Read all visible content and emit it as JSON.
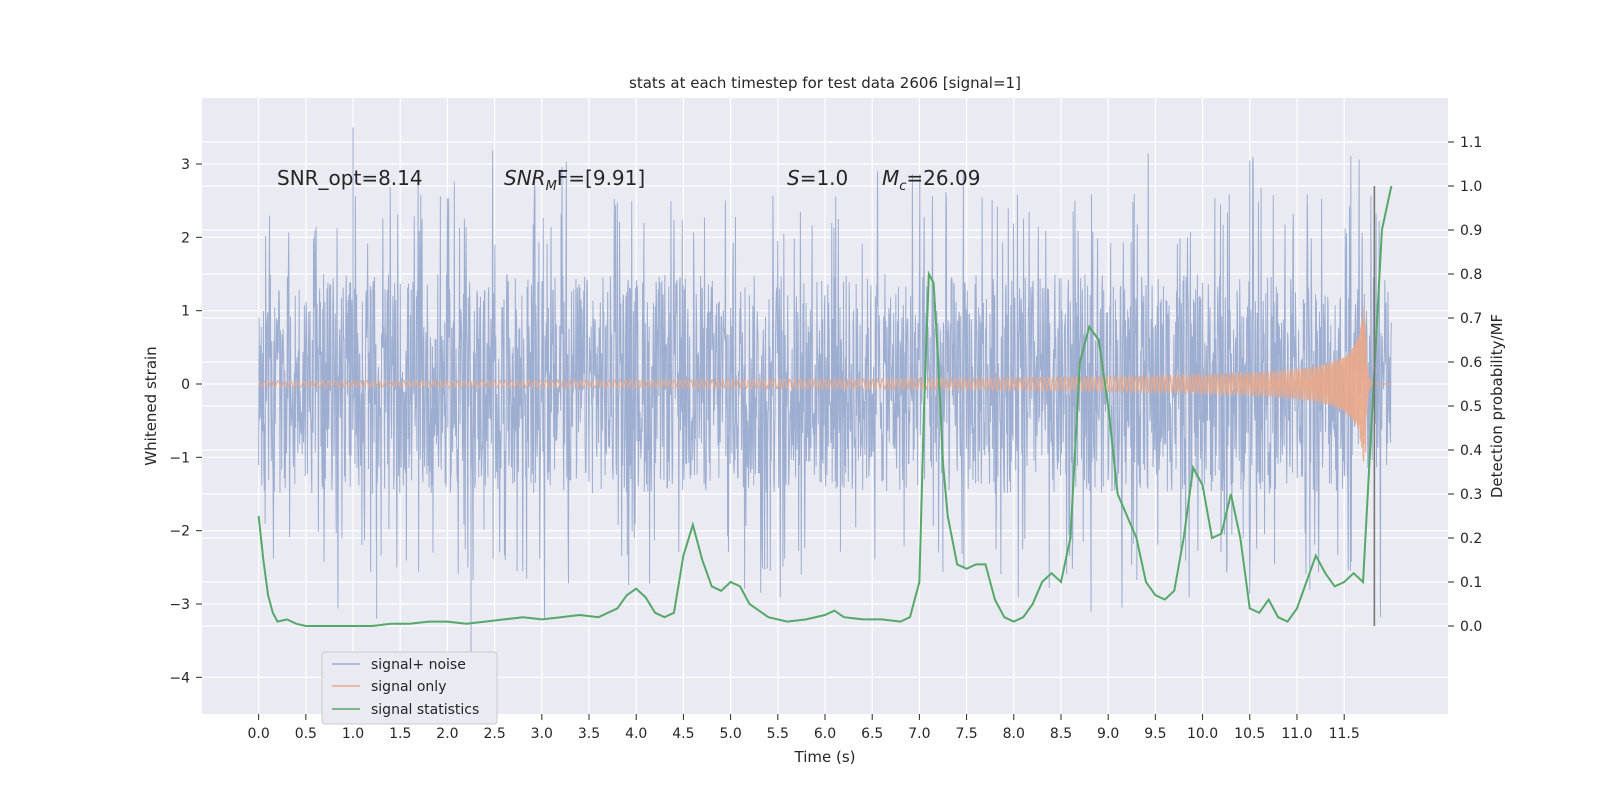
{
  "chart_data": {
    "type": "line",
    "title": "stats at each timestep for test data 2606 [signal=1]",
    "xlabel": "Time (s)",
    "ylabel_left": "Whitened strain",
    "ylabel_right": "Detection probability/MF",
    "xlim": [
      -0.6,
      12.6
    ],
    "ylim_left": [
      -4.5,
      3.9
    ],
    "ylim_right": [
      -0.2,
      1.2
    ],
    "x_ticks": [
      "0.0",
      "0.5",
      "1.0",
      "1.5",
      "2.0",
      "2.5",
      "3.0",
      "3.5",
      "4.0",
      "4.5",
      "5.0",
      "5.5",
      "6.0",
      "6.5",
      "7.0",
      "7.5",
      "8.0",
      "8.5",
      "9.0",
      "9.5",
      "10.0",
      "10.5",
      "11.0",
      "11.5"
    ],
    "y_ticks_left": [
      "3",
      "2",
      "1",
      "0",
      "−1",
      "−2",
      "−3",
      "−4"
    ],
    "y_ticks_right": [
      "1.1",
      "1.0",
      "0.9",
      "0.8",
      "0.7",
      "0.6",
      "0.5",
      "0.4",
      "0.3",
      "0.2",
      "0.1",
      "0.0"
    ],
    "grid": true,
    "annotations": {
      "snr_opt": "SNR_opt=8.14",
      "snr_mf_sym": "SNR",
      "snr_mf_sub": "M",
      "snr_mf_rest": "F=[9.91]",
      "s_sym": "S",
      "s_rest": "=1.0",
      "mc_sym": "M",
      "mc_sub": "c",
      "mc_rest": "=26.09"
    },
    "legend": {
      "placement": "lower-left",
      "entries": [
        {
          "name": "signal+ noise",
          "color": "#9aabcf"
        },
        {
          "name": "signal only",
          "color": "#e9a98a"
        },
        {
          "name": "signal statistics",
          "color": "#55a868"
        }
      ]
    },
    "series": [
      {
        "name": "signal+ noise",
        "axis": "left",
        "color": "#9aabcf",
        "x_range": [
          0.0,
          12.0
        ],
        "envelope": "noise band approx -2.2..2.2 with spikes to 3.5 and -4.1"
      },
      {
        "name": "signal only",
        "axis": "left",
        "color": "#e9a98a",
        "x_range": [
          0.0,
          12.0
        ],
        "peak_time": 11.72,
        "peak_amplitude": 1.5
      },
      {
        "name": "signal statistics",
        "axis": "right",
        "color": "#55a868",
        "x": [
          0.0,
          0.05,
          0.1,
          0.15,
          0.2,
          0.3,
          0.4,
          0.5,
          0.6,
          0.8,
          1.0,
          1.2,
          1.4,
          1.6,
          1.8,
          2.0,
          2.2,
          2.4,
          2.6,
          2.8,
          3.0,
          3.2,
          3.4,
          3.6,
          3.8,
          3.9,
          4.0,
          4.1,
          4.2,
          4.3,
          4.4,
          4.5,
          4.6,
          4.7,
          4.8,
          4.9,
          5.0,
          5.1,
          5.2,
          5.4,
          5.6,
          5.8,
          6.0,
          6.1,
          6.2,
          6.4,
          6.6,
          6.8,
          6.9,
          7.0,
          7.05,
          7.1,
          7.15,
          7.2,
          7.25,
          7.3,
          7.4,
          7.5,
          7.6,
          7.7,
          7.75,
          7.8,
          7.9,
          8.0,
          8.1,
          8.2,
          8.3,
          8.4,
          8.5,
          8.6,
          8.7,
          8.8,
          8.9,
          9.0,
          9.1,
          9.2,
          9.3,
          9.4,
          9.5,
          9.6,
          9.7,
          9.8,
          9.9,
          10.0,
          10.1,
          10.2,
          10.3,
          10.4,
          10.5,
          10.6,
          10.7,
          10.8,
          10.9,
          11.0,
          11.1,
          11.2,
          11.3,
          11.4,
          11.5,
          11.6,
          11.7,
          11.8,
          11.9,
          12.0
        ],
        "values": [
          0.25,
          0.15,
          0.07,
          0.03,
          0.01,
          0.015,
          0.005,
          0.0,
          0.0,
          0.0,
          0.0,
          0.0,
          0.005,
          0.005,
          0.01,
          0.01,
          0.005,
          0.01,
          0.015,
          0.02,
          0.015,
          0.02,
          0.025,
          0.02,
          0.04,
          0.07,
          0.085,
          0.065,
          0.03,
          0.02,
          0.03,
          0.16,
          0.23,
          0.15,
          0.09,
          0.08,
          0.1,
          0.09,
          0.05,
          0.02,
          0.01,
          0.015,
          0.025,
          0.035,
          0.02,
          0.015,
          0.015,
          0.01,
          0.02,
          0.1,
          0.5,
          0.8,
          0.78,
          0.6,
          0.37,
          0.25,
          0.14,
          0.13,
          0.14,
          0.14,
          0.1,
          0.06,
          0.02,
          0.01,
          0.02,
          0.05,
          0.1,
          0.12,
          0.1,
          0.2,
          0.6,
          0.68,
          0.65,
          0.5,
          0.3,
          0.25,
          0.2,
          0.1,
          0.07,
          0.06,
          0.08,
          0.2,
          0.36,
          0.32,
          0.2,
          0.21,
          0.3,
          0.2,
          0.04,
          0.03,
          0.06,
          0.02,
          0.01,
          0.04,
          0.1,
          0.16,
          0.12,
          0.09,
          0.1,
          0.12,
          0.1,
          0.5,
          0.9,
          1.0
        ]
      }
    ],
    "vertical_line": {
      "x": 11.82,
      "color": "#777777",
      "range_right": [
        0.0,
        1.0
      ]
    }
  }
}
